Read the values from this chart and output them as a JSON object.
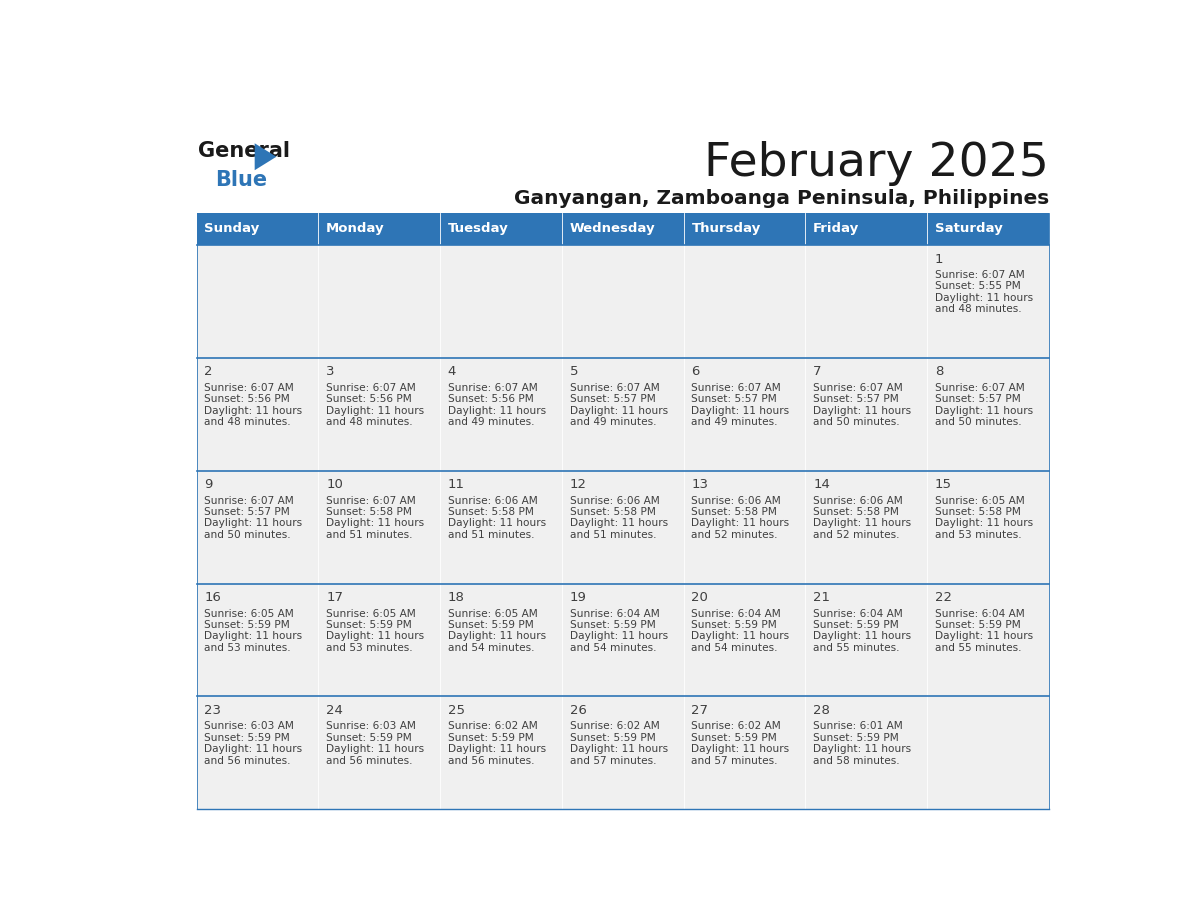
{
  "title": "February 2025",
  "subtitle": "Ganyangan, Zamboanga Peninsula, Philippines",
  "days_of_week": [
    "Sunday",
    "Monday",
    "Tuesday",
    "Wednesday",
    "Thursday",
    "Friday",
    "Saturday"
  ],
  "header_bg": "#2E75B6",
  "header_text": "#FFFFFF",
  "cell_bg": "#F0F0F0",
  "border_color": "#2E75B6",
  "text_color": "#404040",
  "calendar_data": [
    [
      null,
      null,
      null,
      null,
      null,
      null,
      {
        "day": 1,
        "sunrise": "6:07 AM",
        "sunset": "5:55 PM",
        "daylight": "11 hours and 48 minutes."
      }
    ],
    [
      {
        "day": 2,
        "sunrise": "6:07 AM",
        "sunset": "5:56 PM",
        "daylight": "11 hours and 48 minutes."
      },
      {
        "day": 3,
        "sunrise": "6:07 AM",
        "sunset": "5:56 PM",
        "daylight": "11 hours and 48 minutes."
      },
      {
        "day": 4,
        "sunrise": "6:07 AM",
        "sunset": "5:56 PM",
        "daylight": "11 hours and 49 minutes."
      },
      {
        "day": 5,
        "sunrise": "6:07 AM",
        "sunset": "5:57 PM",
        "daylight": "11 hours and 49 minutes."
      },
      {
        "day": 6,
        "sunrise": "6:07 AM",
        "sunset": "5:57 PM",
        "daylight": "11 hours and 49 minutes."
      },
      {
        "day": 7,
        "sunrise": "6:07 AM",
        "sunset": "5:57 PM",
        "daylight": "11 hours and 50 minutes."
      },
      {
        "day": 8,
        "sunrise": "6:07 AM",
        "sunset": "5:57 PM",
        "daylight": "11 hours and 50 minutes."
      }
    ],
    [
      {
        "day": 9,
        "sunrise": "6:07 AM",
        "sunset": "5:57 PM",
        "daylight": "11 hours and 50 minutes."
      },
      {
        "day": 10,
        "sunrise": "6:07 AM",
        "sunset": "5:58 PM",
        "daylight": "11 hours and 51 minutes."
      },
      {
        "day": 11,
        "sunrise": "6:06 AM",
        "sunset": "5:58 PM",
        "daylight": "11 hours and 51 minutes."
      },
      {
        "day": 12,
        "sunrise": "6:06 AM",
        "sunset": "5:58 PM",
        "daylight": "11 hours and 51 minutes."
      },
      {
        "day": 13,
        "sunrise": "6:06 AM",
        "sunset": "5:58 PM",
        "daylight": "11 hours and 52 minutes."
      },
      {
        "day": 14,
        "sunrise": "6:06 AM",
        "sunset": "5:58 PM",
        "daylight": "11 hours and 52 minutes."
      },
      {
        "day": 15,
        "sunrise": "6:05 AM",
        "sunset": "5:58 PM",
        "daylight": "11 hours and 53 minutes."
      }
    ],
    [
      {
        "day": 16,
        "sunrise": "6:05 AM",
        "sunset": "5:59 PM",
        "daylight": "11 hours and 53 minutes."
      },
      {
        "day": 17,
        "sunrise": "6:05 AM",
        "sunset": "5:59 PM",
        "daylight": "11 hours and 53 minutes."
      },
      {
        "day": 18,
        "sunrise": "6:05 AM",
        "sunset": "5:59 PM",
        "daylight": "11 hours and 54 minutes."
      },
      {
        "day": 19,
        "sunrise": "6:04 AM",
        "sunset": "5:59 PM",
        "daylight": "11 hours and 54 minutes."
      },
      {
        "day": 20,
        "sunrise": "6:04 AM",
        "sunset": "5:59 PM",
        "daylight": "11 hours and 54 minutes."
      },
      {
        "day": 21,
        "sunrise": "6:04 AM",
        "sunset": "5:59 PM",
        "daylight": "11 hours and 55 minutes."
      },
      {
        "day": 22,
        "sunrise": "6:04 AM",
        "sunset": "5:59 PM",
        "daylight": "11 hours and 55 minutes."
      }
    ],
    [
      {
        "day": 23,
        "sunrise": "6:03 AM",
        "sunset": "5:59 PM",
        "daylight": "11 hours and 56 minutes."
      },
      {
        "day": 24,
        "sunrise": "6:03 AM",
        "sunset": "5:59 PM",
        "daylight": "11 hours and 56 minutes."
      },
      {
        "day": 25,
        "sunrise": "6:02 AM",
        "sunset": "5:59 PM",
        "daylight": "11 hours and 56 minutes."
      },
      {
        "day": 26,
        "sunrise": "6:02 AM",
        "sunset": "5:59 PM",
        "daylight": "11 hours and 57 minutes."
      },
      {
        "day": 27,
        "sunrise": "6:02 AM",
        "sunset": "5:59 PM",
        "daylight": "11 hours and 57 minutes."
      },
      {
        "day": 28,
        "sunrise": "6:01 AM",
        "sunset": "5:59 PM",
        "daylight": "11 hours and 58 minutes."
      },
      null
    ]
  ]
}
